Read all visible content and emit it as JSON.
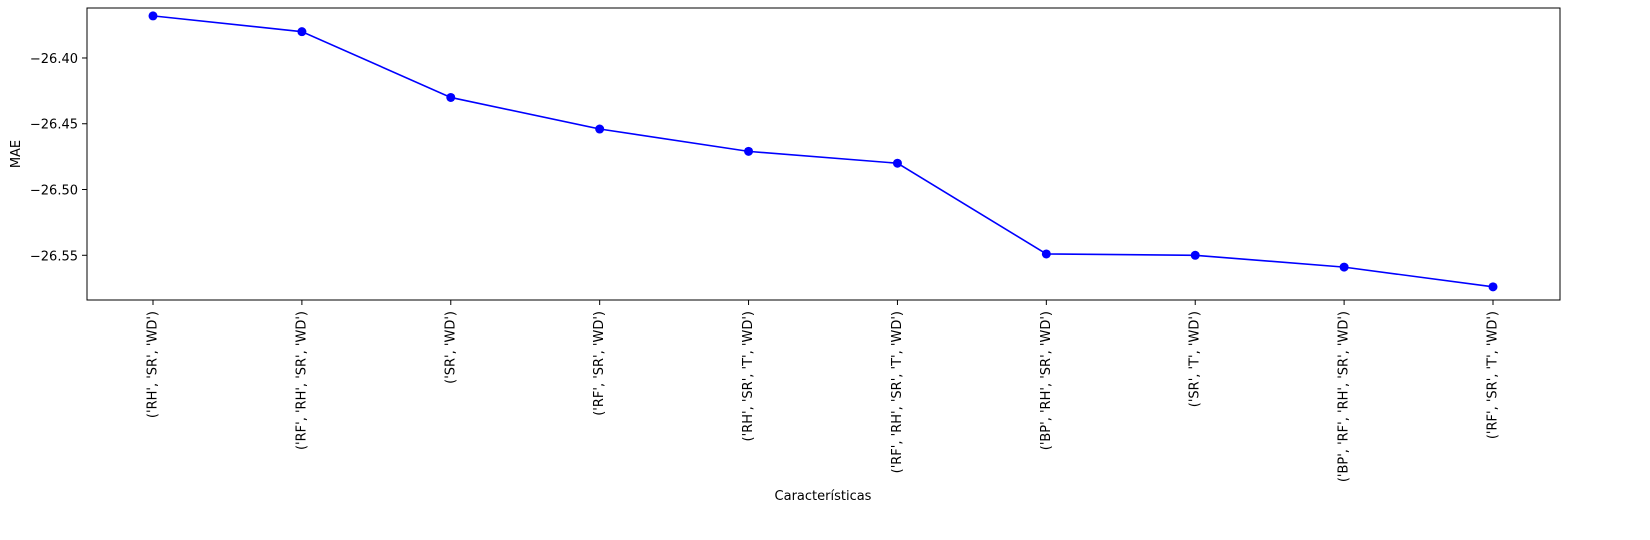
{
  "chart_data": {
    "type": "line",
    "title": "",
    "xlabel": "Características",
    "ylabel": "MAE",
    "categories": [
      "('RH', 'SR', 'WD')",
      "('RF', 'RH', 'SR', 'WD')",
      "('SR', 'WD')",
      "('RF', 'SR', 'WD')",
      "('RH', 'SR', 'T', 'WD')",
      "('RF', 'RH', 'SR', 'T', 'WD')",
      "('BP', 'RH', 'SR', 'WD')",
      "('SR', 'T', 'WD')",
      "('BP', 'RF', 'RH', 'SR', 'WD')",
      "('RF', 'SR', 'T', 'WD')"
    ],
    "series": [
      {
        "values": [
          -26.368,
          -26.38,
          -26.43,
          -26.454,
          -26.471,
          -26.48,
          -26.549,
          -26.55,
          -26.559,
          -26.574
        ],
        "color": "#0000ff",
        "marker": "circle"
      }
    ],
    "yticks": [
      -26.4,
      -26.45,
      -26.5,
      -26.55
    ],
    "ytick_labels": [
      "−26.40",
      "−26.45",
      "−26.50",
      "−26.55"
    ],
    "ylim": [
      -26.584,
      -26.362
    ],
    "grid": false,
    "legend": "none"
  }
}
